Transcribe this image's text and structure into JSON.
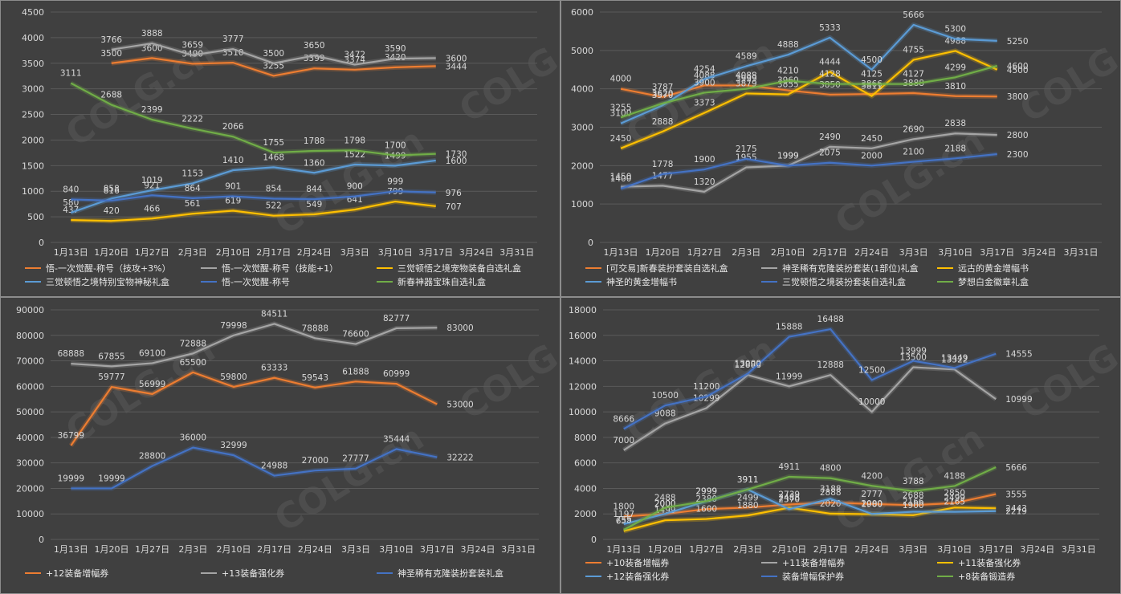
{
  "dates": [
    "1月13日",
    "1月20日",
    "1月27日",
    "2月3日",
    "2月10日",
    "2月17日",
    "2月24日",
    "3月3日",
    "3月10日",
    "3月17日",
    "3月24日",
    "3月31日"
  ],
  "watermark": "COLG.cn",
  "chart_data": [
    {
      "type": "line",
      "ylim": [
        0,
        4500
      ],
      "yticks": [
        0,
        500,
        1000,
        1500,
        2000,
        2500,
        3000,
        3500,
        4000,
        4500
      ],
      "series": [
        {
          "name": "悟-一次觉醒-称号（技攻+3%）",
          "color": "#ed7d31",
          "values": [
            null,
            3500,
            3600,
            3490,
            3510,
            3255,
            3399,
            3374,
            3420,
            3444,
            null,
            null
          ]
        },
        {
          "name": "悟-一次觉醒-称号（技能+1）",
          "color": "#a5a5a5",
          "values": [
            null,
            3766,
            3888,
            3659,
            3777,
            3500,
            3650,
            3472,
            3590,
            3600,
            null,
            null
          ]
        },
        {
          "name": "三觉顿悟之境宠物装备自选礼盒",
          "color": "#ffc000",
          "values": [
            437,
            420,
            466,
            561,
            619,
            522,
            549,
            641,
            799,
            707,
            null,
            null
          ]
        },
        {
          "name": "三觉顿悟之境特别宝物神秘礼盒",
          "color": "#5b9bd5",
          "values": [
            580,
            858,
            1019,
            1153,
            1410,
            1468,
            1360,
            1522,
            1499,
            1600,
            null,
            null
          ]
        },
        {
          "name": "悟-一次觉醒-称号",
          "color": "#4472c4",
          "values": [
            840,
            816,
            921,
            864,
            901,
            854,
            844,
            900,
            999,
            976,
            null,
            null
          ]
        },
        {
          "name": "新春神器宝珠自选礼盒",
          "color": "#70ad47",
          "values": [
            3111,
            2688,
            2399,
            2222,
            2066,
            1755,
            1788,
            1798,
            1700,
            1730,
            null,
            null
          ]
        }
      ]
    },
    {
      "type": "line",
      "ylim": [
        0,
        6000
      ],
      "yticks": [
        0,
        1000,
        2000,
        3000,
        4000,
        5000,
        6000
      ],
      "series": [
        {
          "name": "[可交易]新春装扮套装自选礼盒",
          "color": "#ed7d31",
          "values": [
            4000,
            3787,
            4088,
            4088,
            3960,
            3850,
            3866,
            3888,
            3810,
            3800,
            null,
            null
          ]
        },
        {
          "name": "神圣稀有克隆装扮套装(1部位)礼盒",
          "color": "#a5a5a5",
          "values": [
            1450,
            1477,
            1320,
            1955,
            1999,
            2490,
            2450,
            2690,
            2838,
            2800,
            null,
            null
          ]
        },
        {
          "name": "远古的黄金增幅书",
          "color": "#ffc000",
          "values": [
            2450,
            2888,
            3373,
            3879,
            3855,
            4444,
            3811,
            4755,
            4988,
            4500,
            null,
            null
          ]
        },
        {
          "name": "神圣的黄金增幅书",
          "color": "#5b9bd5",
          "values": [
            3100,
            3570,
            4254,
            4589,
            4888,
            5333,
            4500,
            5666,
            5300,
            5250,
            null,
            null
          ]
        },
        {
          "name": "三觉顿悟之境装扮套装自选礼盒",
          "color": "#4472c4",
          "values": [
            1400,
            1778,
            1900,
            2175,
            1999,
            2075,
            2000,
            2100,
            2188,
            2300,
            null,
            null
          ]
        },
        {
          "name": "梦想白金徽章礼盒",
          "color": "#70ad47",
          "values": [
            3255,
            3620,
            3900,
            3999,
            4210,
            4128,
            4125,
            4127,
            4299,
            4600,
            null,
            null
          ]
        }
      ]
    },
    {
      "type": "line",
      "ylim": [
        0,
        90000
      ],
      "yticks": [
        0,
        10000,
        20000,
        30000,
        40000,
        50000,
        60000,
        70000,
        80000,
        90000
      ],
      "series": [
        {
          "name": "+12装备增幅券",
          "color": "#ed7d31",
          "values": [
            36799,
            59777,
            56999,
            65500,
            59800,
            63333,
            59543,
            61888,
            60999,
            53000,
            null,
            null
          ]
        },
        {
          "name": "+13装备强化券",
          "color": "#a5a5a5",
          "values": [
            68888,
            67855,
            69100,
            72888,
            79998,
            84511,
            78888,
            76600,
            82777,
            83000,
            null,
            null
          ]
        },
        {
          "name": "神圣稀有克隆装扮套装礼盒",
          "color": "#4472c4",
          "values": [
            19999,
            19999,
            28800,
            36000,
            32999,
            24988,
            27000,
            27777,
            35444,
            32222,
            null,
            null
          ]
        }
      ]
    },
    {
      "type": "line",
      "ylim": [
        0,
        18000
      ],
      "yticks": [
        0,
        2000,
        4000,
        6000,
        8000,
        10000,
        12000,
        14000,
        16000,
        18000
      ],
      "series": [
        {
          "name": "+10装备增幅券",
          "color": "#ed7d31",
          "values": [
            1800,
            2000,
            2380,
            2499,
            2739,
            2888,
            2777,
            2688,
            2850,
            3555,
            null,
            null
          ]
        },
        {
          "name": "+11装备增幅券",
          "color": "#a5a5a5",
          "values": [
            7000,
            9088,
            10299,
            12888,
            11999,
            12888,
            10000,
            13500,
            13322,
            10999,
            null,
            null
          ]
        },
        {
          "name": "+11装备强化券",
          "color": "#ffc000",
          "values": [
            658,
            1499,
            1600,
            1880,
            2488,
            2020,
            1980,
            1900,
            2499,
            2443,
            null,
            null
          ]
        },
        {
          "name": "+12装备强化券",
          "color": "#5b9bd5",
          "values": [
            1197,
            2000,
            2999,
            3911,
            2370,
            3188,
            2000,
            2166,
            2165,
            2219,
            null,
            null
          ]
        },
        {
          "name": "装备增幅保护券",
          "color": "#4472c4",
          "values": [
            8666,
            10500,
            11200,
            13000,
            15888,
            16488,
            12500,
            13999,
            13449,
            14555,
            null,
            null
          ]
        },
        {
          "name": "+8装备锻造券",
          "color": "#70ad47",
          "values": [
            755,
            2488,
            2999,
            3911,
            4911,
            4800,
            4200,
            3788,
            4188,
            5666,
            null,
            null
          ]
        }
      ]
    }
  ]
}
